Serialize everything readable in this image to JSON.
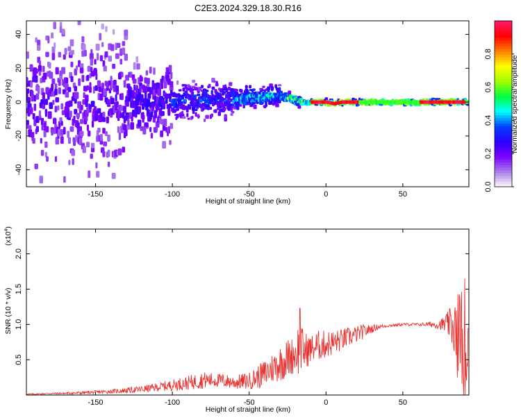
{
  "title": "C2E3.2024.329.18.30.R16",
  "chart_data": [
    {
      "type": "heatmap",
      "xlabel": "Height of straight line (km)",
      "ylabel": "Frequency (Hz)",
      "xlim": [
        -195,
        93
      ],
      "ylim": [
        -50,
        48
      ],
      "xticks": [
        -150,
        -100,
        -50,
        0,
        50
      ],
      "yticks": [
        -40,
        -20,
        0,
        20,
        40
      ],
      "colorbar": {
        "label": "Normalized spectral amplitude",
        "range": [
          0,
          1
        ],
        "ticks": [
          0.0,
          0.2,
          0.4,
          0.6,
          0.8
        ],
        "colors": [
          "#ffffff",
          "#a97fe8",
          "#7a00ff",
          "#2b00ff",
          "#0040ff",
          "#00ffff",
          "#00ff40",
          "#a0ff00",
          "#ffff00",
          "#ff8000",
          "#ff0000",
          "#ff1a6b"
        ]
      },
      "line_centroid": {
        "x": [
          -160,
          -140,
          -120,
          -100,
          -80,
          -60,
          -45,
          -35,
          -28,
          -20,
          -15,
          -10,
          -5,
          0,
          5,
          10,
          20,
          40,
          60,
          80,
          93
        ],
        "y": [
          0,
          0,
          0,
          0,
          1,
          2,
          3,
          3.5,
          3,
          1.5,
          0,
          0,
          0,
          0,
          -1,
          0,
          0,
          0,
          0,
          0,
          0
        ]
      }
    },
    {
      "type": "line",
      "xlabel": "Height of straight line (km)",
      "ylabel": "SNR (10 * v/v)",
      "y_multiplier": "(x10",
      "y_multiplier_exp": "4",
      "xlim": [
        -195,
        93
      ],
      "ylim": [
        0,
        2.35
      ],
      "xticks": [
        -150,
        -100,
        -50,
        0,
        50
      ],
      "yticks": [
        0.5,
        1.0,
        1.5,
        2.0
      ],
      "series": [
        {
          "color": "#e8312f",
          "x": [
            -195,
            -180,
            -160,
            -140,
            -120,
            -110,
            -100,
            -90,
            -80,
            -70,
            -60,
            -50,
            -45,
            -40,
            -35,
            -30,
            -25,
            -20,
            -17,
            -15,
            -10,
            -5,
            0,
            5,
            10,
            15,
            20,
            25,
            30,
            35,
            40,
            50,
            60,
            65,
            70,
            75,
            80,
            85,
            88,
            90,
            93
          ],
          "y": [
            0.01,
            0.02,
            0.03,
            0.05,
            0.08,
            0.11,
            0.14,
            0.17,
            0.21,
            0.21,
            0.18,
            0.2,
            0.25,
            0.3,
            0.38,
            0.45,
            0.52,
            0.58,
            0.7,
            0.62,
            0.65,
            0.7,
            0.72,
            0.74,
            0.78,
            0.82,
            0.86,
            0.9,
            0.94,
            0.97,
            0.98,
            1.0,
            1.0,
            1.0,
            1.0,
            1.0,
            1.0,
            0.95,
            0.75,
            0.6,
            0.6
          ],
          "noise_amplitude": [
            0.01,
            0.01,
            0.02,
            0.03,
            0.05,
            0.06,
            0.08,
            0.1,
            0.12,
            0.1,
            0.1,
            0.12,
            0.16,
            0.2,
            0.22,
            0.26,
            0.28,
            0.26,
            0.45,
            0.3,
            0.2,
            0.22,
            0.2,
            0.18,
            0.16,
            0.14,
            0.12,
            0.1,
            0.06,
            0.03,
            0.02,
            0.02,
            0.02,
            0.03,
            0.05,
            0.08,
            0.2,
            0.5,
            0.9,
            0.9,
            0.6
          ]
        }
      ]
    }
  ]
}
